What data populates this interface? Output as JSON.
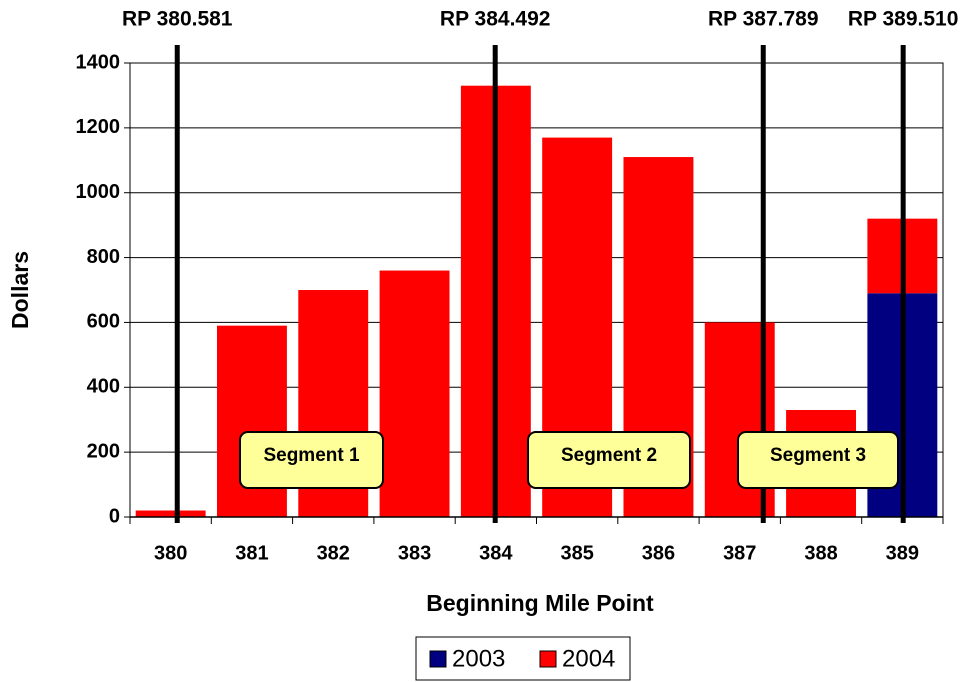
{
  "chart_data": {
    "type": "stacked_bar",
    "x_label": "Beginning Mile Point",
    "y_label": "Dollars",
    "categories": [
      "380",
      "381",
      "382",
      "383",
      "384",
      "385",
      "386",
      "387",
      "388",
      "389"
    ],
    "series": [
      {
        "name": "2003",
        "color": "#000080",
        "values": [
          0,
          0,
          0,
          0,
          0,
          0,
          0,
          0,
          0,
          690
        ]
      },
      {
        "name": "2004",
        "color": "#ff0000",
        "values": [
          20,
          590,
          700,
          760,
          1330,
          1170,
          1110,
          600,
          330,
          230
        ]
      }
    ],
    "ylim": [
      0,
      1400
    ],
    "yticks": [
      0,
      200,
      400,
      600,
      800,
      1000,
      1200,
      1400
    ],
    "grid": true,
    "legend": "bottom",
    "reference_lines": [
      {
        "value": 380.581,
        "label": "RP 380.581"
      },
      {
        "value": 384.492,
        "label": "RP 384.492"
      },
      {
        "value": 387.789,
        "label": "RP 387.789"
      },
      {
        "value": 389.51,
        "label": "RP 389.510"
      }
    ],
    "annotations": [
      "Segment 1",
      "Segment 2",
      "Segment 3"
    ]
  }
}
